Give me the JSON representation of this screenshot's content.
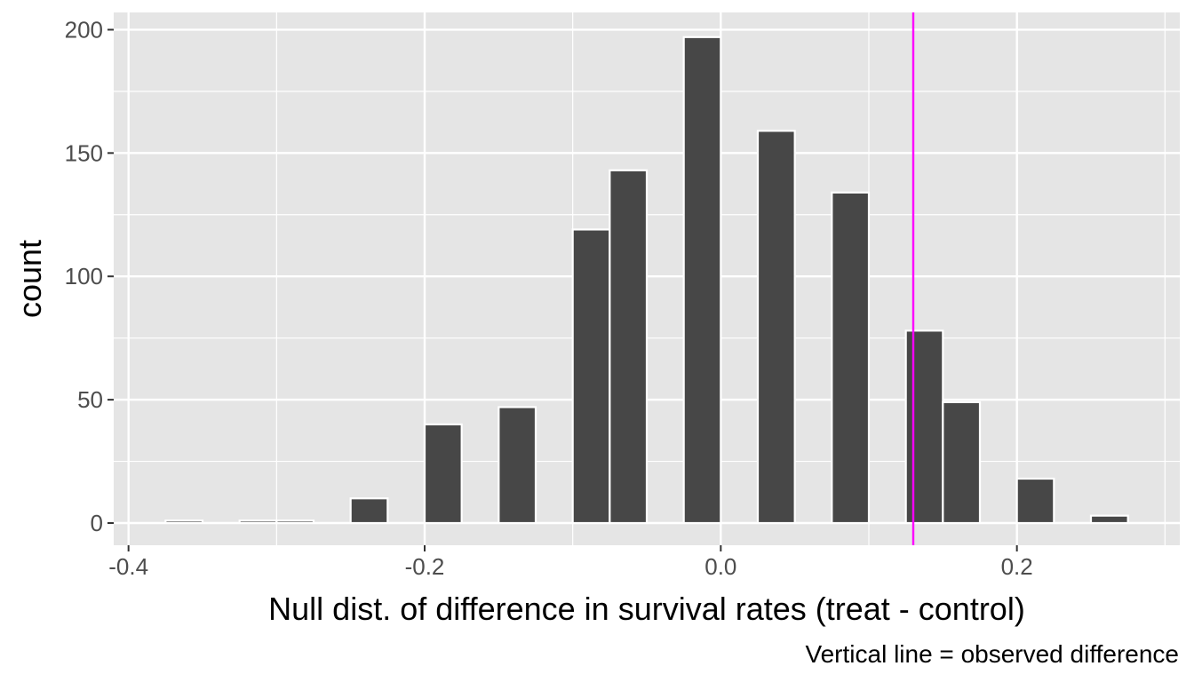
{
  "chart_data": {
    "type": "bar",
    "xlabel": "Null dist. of difference in survival rates (treat - control)",
    "ylabel": "count",
    "caption": "Vertical line = observed difference",
    "xlim": [
      -0.41,
      0.31
    ],
    "ylim": [
      -9,
      207
    ],
    "x_ticks": [
      -0.4,
      -0.2,
      0.0,
      0.2
    ],
    "x_tick_labels": [
      "-0.4",
      "-0.2",
      "0.0",
      "0.2"
    ],
    "y_ticks": [
      0,
      50,
      100,
      150,
      200
    ],
    "y_tick_labels": [
      "0",
      "50",
      "100",
      "150",
      "200"
    ],
    "bin_width": 0.025,
    "bins": [
      {
        "x": -0.3625,
        "count": 1
      },
      {
        "x": -0.3125,
        "count": 1
      },
      {
        "x": -0.2875,
        "count": 1
      },
      {
        "x": -0.2375,
        "count": 10
      },
      {
        "x": -0.1875,
        "count": 40
      },
      {
        "x": -0.1375,
        "count": 47
      },
      {
        "x": -0.0875,
        "count": 119
      },
      {
        "x": -0.0625,
        "count": 143
      },
      {
        "x": -0.0125,
        "count": 197
      },
      {
        "x": 0.0375,
        "count": 159
      },
      {
        "x": 0.0875,
        "count": 134
      },
      {
        "x": 0.1375,
        "count": 78
      },
      {
        "x": 0.1625,
        "count": 49
      },
      {
        "x": 0.2125,
        "count": 18
      },
      {
        "x": 0.2625,
        "count": 3
      }
    ],
    "observed_difference": 0.13,
    "colors": {
      "panel": "#e5e5e5",
      "grid": "#ffffff",
      "bar_fill": "#474747",
      "bar_outline": "#ffffff",
      "observed_line": "#ff00ff"
    },
    "grid": true
  }
}
